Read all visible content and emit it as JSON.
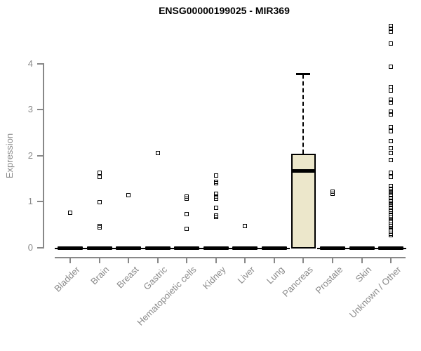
{
  "title": "ENSG00000199025 - MIR369",
  "colors": {
    "box_fill": "#ECE7CB",
    "marker": "#000000",
    "axis": "#888888",
    "tick_text": "#8a8a8a",
    "title_text": "#000000"
  },
  "chart_data": {
    "type": "boxplot",
    "title": "ENSG00000199025 - MIR369",
    "xlabel": "",
    "ylabel": "Expression",
    "ylim": [
      0,
      4.9
    ],
    "yticks": [
      0,
      1,
      2,
      3,
      4
    ],
    "grid": false,
    "legend": false,
    "categories": [
      "Bladder",
      "Brain",
      "Breast",
      "Gastric",
      "Hematopoietic cells",
      "Kidney",
      "Liver",
      "Lung",
      "Pancreas",
      "Prostate",
      "Skin",
      "Unknown / Other"
    ],
    "series": [
      {
        "name": "Bladder",
        "q1": 0,
        "median": 0,
        "q3": 0,
        "whisker_low": 0,
        "whisker_high": 0,
        "outliers": [
          0.76
        ]
      },
      {
        "name": "Brain",
        "q1": 0,
        "median": 0,
        "q3": 0,
        "whisker_low": 0,
        "whisker_high": 0,
        "outliers": [
          1.62,
          1.53,
          0.99,
          0.47,
          0.44
        ]
      },
      {
        "name": "Breast",
        "q1": 0,
        "median": 0,
        "q3": 0,
        "whisker_low": 0,
        "whisker_high": 0,
        "outliers": [
          1.14
        ]
      },
      {
        "name": "Gastric",
        "q1": 0,
        "median": 0,
        "q3": 0,
        "whisker_low": 0,
        "whisker_high": 0,
        "outliers": [
          2.06
        ]
      },
      {
        "name": "Hematopoietic cells",
        "q1": 0,
        "median": 0,
        "q3": 0,
        "whisker_low": 0,
        "whisker_high": 0,
        "outliers": [
          1.1,
          1.06,
          0.72,
          0.41
        ]
      },
      {
        "name": "Kidney",
        "q1": 0,
        "median": 0,
        "q3": 0,
        "whisker_low": 0,
        "whisker_high": 0,
        "outliers": [
          1.57,
          1.43,
          1.39,
          1.17,
          1.1,
          1.06,
          0.87,
          0.7,
          0.67
        ]
      },
      {
        "name": "Liver",
        "q1": 0,
        "median": 0,
        "q3": 0,
        "whisker_low": 0,
        "whisker_high": 0,
        "outliers": [
          0.47
        ]
      },
      {
        "name": "Lung",
        "q1": 0,
        "median": 0,
        "q3": 0,
        "whisker_low": 0,
        "whisker_high": 0,
        "outliers": []
      },
      {
        "name": "Pancreas",
        "q1": 0,
        "median": 1.66,
        "q3": 2.04,
        "whisker_low": 0,
        "whisker_high": 3.79,
        "outliers": []
      },
      {
        "name": "Prostate",
        "q1": 0,
        "median": 0,
        "q3": 0,
        "whisker_low": 0,
        "whisker_high": 0,
        "outliers": [
          1.21,
          1.17
        ]
      },
      {
        "name": "Skin",
        "q1": 0,
        "median": 0,
        "q3": 0,
        "whisker_low": 0,
        "whisker_high": 0,
        "outliers": []
      },
      {
        "name": "Unknown / Other",
        "q1": 0,
        "median": 0,
        "q3": 0,
        "whisker_low": 0,
        "whisker_high": 0,
        "outliers": [
          4.82,
          4.76,
          4.7,
          4.43,
          3.93,
          3.49,
          3.41,
          3.21,
          3.15,
          2.95,
          2.89,
          2.62,
          2.53,
          2.31,
          2.16,
          2.06,
          1.9,
          1.62,
          1.53,
          1.33,
          1.28,
          1.23,
          1.18,
          1.13,
          1.08,
          1.02,
          0.97,
          0.92,
          0.86,
          0.82,
          0.78,
          0.74,
          0.7,
          0.66,
          0.62,
          0.58,
          0.54,
          0.5,
          0.46,
          0.42,
          0.38,
          0.34,
          0.3,
          0.26
        ]
      }
    ]
  }
}
